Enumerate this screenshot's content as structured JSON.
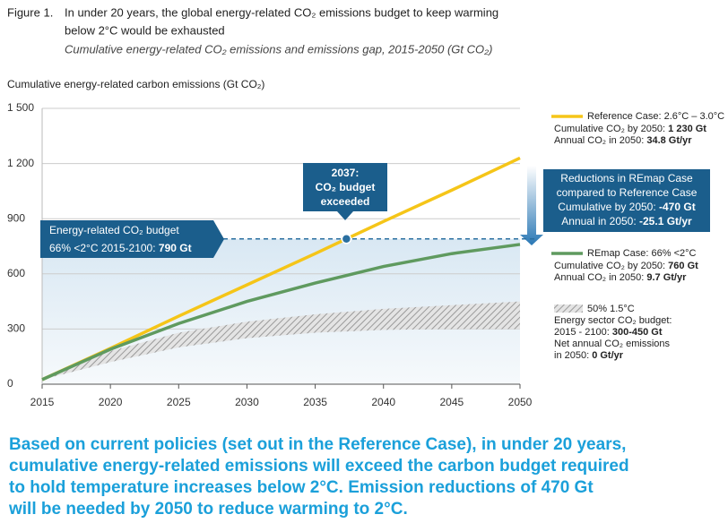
{
  "title_prefix": "Figure 1.",
  "title_lines": [
    "In under 20 years, the global energy-related CO₂ emissions budget to keep warming",
    "below 2°C would be exhausted"
  ],
  "subtitle": "Cumulative energy-related CO₂ emissions and emissions gap, 2015-2050 (Gt CO₂)",
  "chart_data": {
    "type": "line",
    "y_label": "Cumulative energy-related carbon emissions (Gt CO₂)",
    "x": [
      2015,
      2020,
      2025,
      2030,
      2035,
      2040,
      2045,
      2050
    ],
    "xlim": [
      2015,
      2050
    ],
    "ylim": [
      0,
      1500
    ],
    "xticks": [
      2015,
      2020,
      2025,
      2030,
      2035,
      2040,
      2045,
      2050
    ],
    "yticks": [
      {
        "value": 1500,
        "label": "1 500"
      },
      {
        "value": 1200,
        "label": "1 200"
      },
      900,
      600,
      300,
      0
    ],
    "grid": true,
    "series": [
      {
        "name": "Reference Case:",
        "color": "#f5c518",
        "values": [
          25,
          195,
          370,
          540,
          710,
          885,
          1055,
          1230
        ],
        "legend_detail": " 2.6°C – 3.0°C",
        "legend_lines": [
          {
            "text": "Cumulative CO₂ by 2050: ",
            "bold": "1 230 Gt"
          },
          {
            "text": "Annual CO₂ in 2050: ",
            "bold": "34.8 Gt/yr"
          }
        ]
      },
      {
        "name": "REmap Case:",
        "color": "#5f9a5f",
        "values": [
          25,
          190,
          330,
          450,
          550,
          640,
          710,
          760
        ],
        "legend_detail": " 66% <2°C",
        "legend_lines": [
          {
            "text": "Cumulative CO₂ by 2050: ",
            "bold": "760 Gt"
          },
          {
            "text": "Annual CO₂ in 2050: ",
            "bold": "9.7 Gt/yr"
          }
        ]
      }
    ],
    "band": {
      "name": "50% 1.5°C",
      "color": "#9a9a9a",
      "lower": [
        25,
        120,
        200,
        250,
        280,
        295,
        300,
        300
      ],
      "upper": [
        25,
        180,
        280,
        340,
        380,
        410,
        430,
        450
      ],
      "legend_lines": [
        {
          "text": "Energy sector CO₂ budget:"
        },
        {
          "text": "2015 - 2100: ",
          "bold": "300-450 Gt"
        },
        {
          "text": "Net annual CO₂ emissions"
        },
        {
          "text": "in 2050: ",
          "bold": "0 Gt/yr"
        }
      ]
    },
    "budget": {
      "value": 790,
      "color": "#2a6fa0",
      "label_lines": [
        {
          "text": "Energy-related CO₂ budget"
        },
        {
          "text": "66% <2°C 2015-2100: ",
          "bold": "790 Gt"
        }
      ]
    },
    "callout_lines": [
      {
        "bold": "2037:"
      },
      {
        "bold": "CO₂ budget"
      },
      {
        "bold": "exceeded"
      }
    ],
    "reduction_lines": [
      {
        "text": "Reductions in REmap Case"
      },
      {
        "text": "compared to Reference Case"
      },
      {
        "text": "Cumulative by 2050: ",
        "bold": "-470 Gt"
      },
      {
        "text": "Annual in 2050: ",
        "bold": "-25.1 Gt/yr"
      }
    ]
  },
  "caption": [
    "Based on current policies (set out in the Reference Case), in under 20 years,",
    "cumulative energy-related emissions will exceed the carbon budget required",
    "to hold temperature increases below 2°C. Emission reductions of 470 Gt",
    "will be needed by 2050 to reduce warming to 2°C."
  ]
}
